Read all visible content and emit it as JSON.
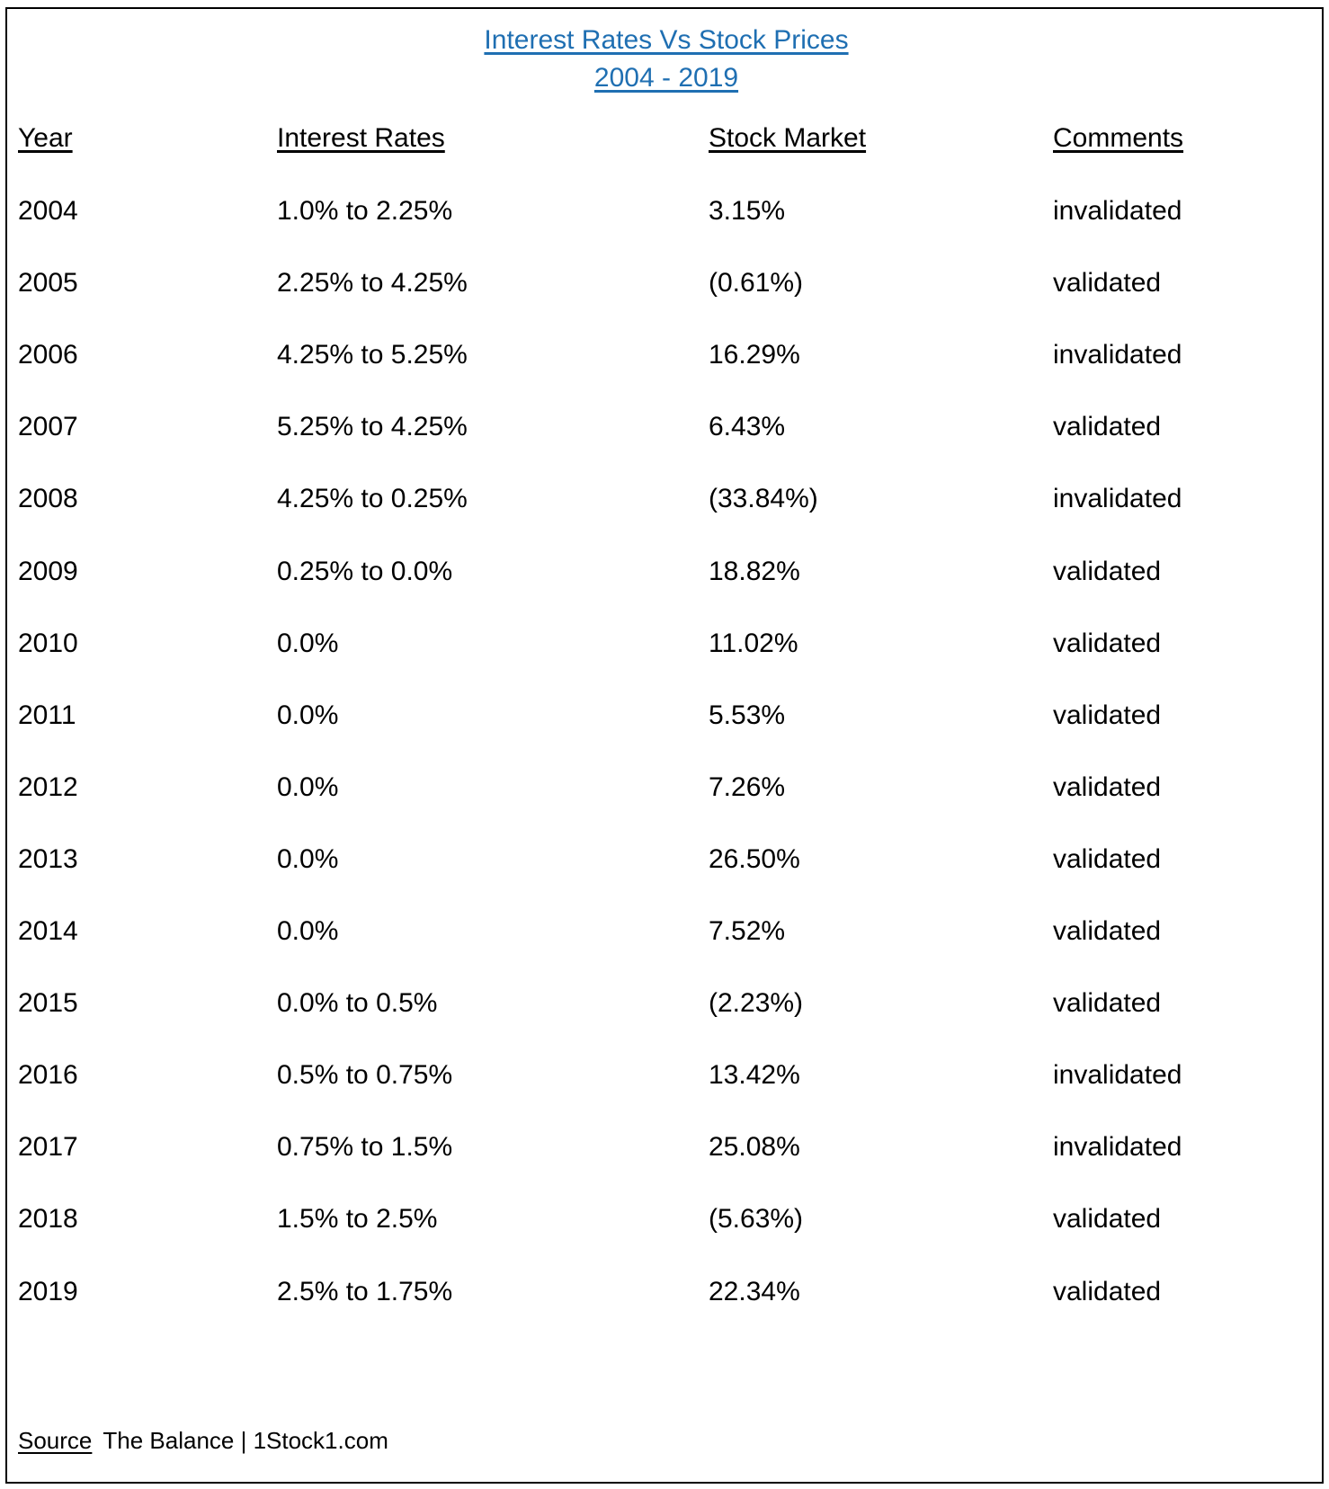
{
  "title": {
    "line1": "Interest Rates Vs Stock Prices",
    "line2": "2004 - 2019"
  },
  "headers": {
    "year": "Year",
    "rates": "Interest Rates",
    "stock": "Stock Market",
    "comments": "Comments"
  },
  "rows": [
    {
      "year": "2004",
      "rates": "1.0% to 2.25%",
      "stock": " 3.15%",
      "comment": "invalidated"
    },
    {
      "year": "2005",
      "rates": "2.25% to 4.25%",
      "stock": "(0.61%)",
      "comment": "validated"
    },
    {
      "year": "2006",
      "rates": "4.25% to 5.25%",
      "stock": " 16.29%",
      "comment": "invalidated"
    },
    {
      "year": "2007",
      "rates": "5.25% to 4.25%",
      "stock": " 6.43%",
      "comment": "validated"
    },
    {
      "year": "2008",
      "rates": "4.25% to 0.25%",
      "stock": "(33.84%)",
      "comment": "invalidated"
    },
    {
      "year": "2009",
      "rates": "0.25% to 0.0%",
      "stock": " 18.82%",
      "comment": "validated"
    },
    {
      "year": "2010",
      "rates": "0.0%",
      "stock": " 11.02%",
      "comment": "validated"
    },
    {
      "year": "2011",
      "rates": "0.0%",
      "stock": " 5.53%",
      "comment": "validated"
    },
    {
      "year": "2012",
      "rates": "0.0%",
      "stock": " 7.26%",
      "comment": "validated"
    },
    {
      "year": "2013",
      "rates": "0.0%",
      "stock": " 26.50%",
      "comment": "validated"
    },
    {
      "year": "2014",
      "rates": "0.0%",
      "stock": " 7.52%",
      "comment": "validated"
    },
    {
      "year": "2015",
      "rates": "0.0% to 0.5%",
      "stock": "(2.23%)",
      "comment": "validated"
    },
    {
      "year": "2016",
      "rates": "0.5% to 0.75%",
      "stock": " 13.42%",
      "comment": "invalidated"
    },
    {
      "year": "2017",
      "rates": "0.75% to 1.5%",
      "stock": " 25.08%",
      "comment": "invalidated"
    },
    {
      "year": "2018",
      "rates": "1.5% to 2.5%",
      "stock": "(5.63%)",
      "comment": "validated"
    },
    {
      "year": "2019",
      "rates": "2.5% to 1.75%",
      "stock": " 22.34%",
      "comment": "validated"
    }
  ],
  "source": {
    "label": "Source",
    "text": "The Balance | 1Stock1.com"
  },
  "colors": {
    "title": "#1f6fb2",
    "text": "#000000",
    "border": "#000000"
  }
}
